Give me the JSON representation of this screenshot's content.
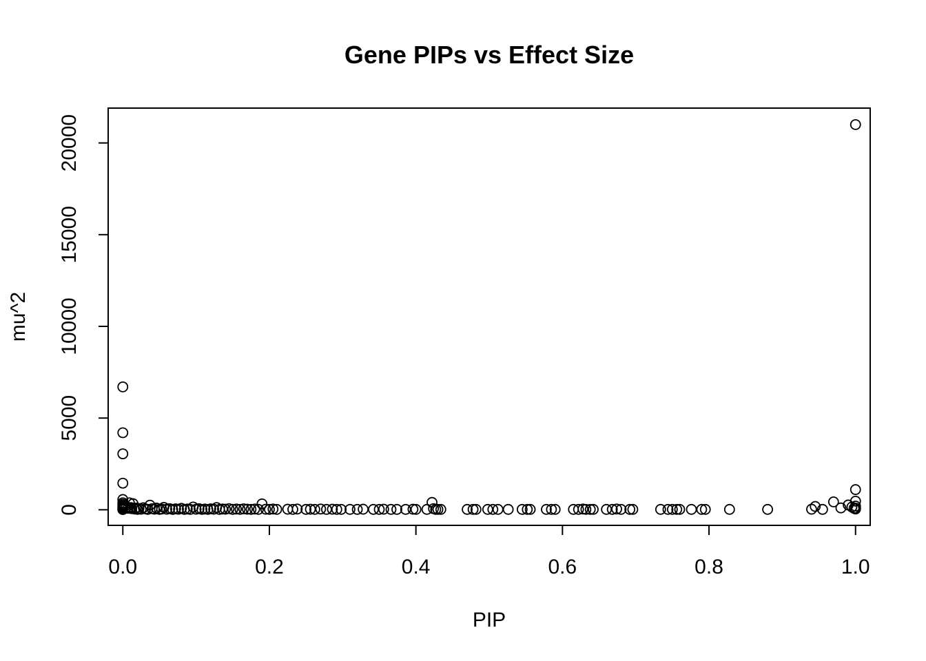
{
  "chart_data": {
    "type": "scatter",
    "title": "Gene PIPs vs Effect Size",
    "xlabel": "PIP",
    "ylabel": "mu^2",
    "xlim": [
      -0.02,
      1.02
    ],
    "ylim": [
      -850,
      21900
    ],
    "x_ticks": [
      0.0,
      0.2,
      0.4,
      0.6,
      0.8,
      1.0
    ],
    "x_tick_labels": [
      "0.0",
      "0.2",
      "0.4",
      "0.6",
      "0.8",
      "1.0"
    ],
    "y_ticks": [
      0,
      5000,
      10000,
      15000,
      20000
    ],
    "y_tick_labels": [
      "0",
      "5000",
      "10000",
      "15000",
      "20000"
    ],
    "grid": false,
    "legend": "none",
    "marker": "open-circle",
    "color": "#000000",
    "series": [
      {
        "points": [
          [
            0.0,
            6700
          ],
          [
            0.0,
            4200
          ],
          [
            0.0,
            3050
          ],
          [
            0.0,
            1450
          ],
          [
            0.0,
            560
          ],
          [
            0.0,
            380
          ],
          [
            0.0,
            300
          ],
          [
            0.0,
            240
          ],
          [
            0.0,
            180
          ],
          [
            0.0,
            130
          ],
          [
            0.0,
            90
          ],
          [
            0.0,
            60
          ],
          [
            0.0,
            30
          ],
          [
            0.0,
            10
          ],
          [
            0.003,
            200
          ],
          [
            0.005,
            150
          ],
          [
            0.007,
            80
          ],
          [
            0.009,
            380
          ],
          [
            0.011,
            120
          ],
          [
            0.012,
            60
          ],
          [
            0.014,
            330
          ],
          [
            0.016,
            40
          ],
          [
            0.018,
            90
          ],
          [
            0.02,
            20
          ],
          [
            0.022,
            70
          ],
          [
            0.025,
            30
          ],
          [
            0.028,
            110
          ],
          [
            0.031,
            50
          ],
          [
            0.034,
            20
          ],
          [
            0.037,
            250
          ],
          [
            0.04,
            60
          ],
          [
            0.043,
            30
          ],
          [
            0.046,
            90
          ],
          [
            0.05,
            20
          ],
          [
            0.053,
            40
          ],
          [
            0.056,
            130
          ],
          [
            0.06,
            30
          ],
          [
            0.064,
            60
          ],
          [
            0.068,
            20
          ],
          [
            0.072,
            50
          ],
          [
            0.076,
            30
          ],
          [
            0.08,
            80
          ],
          [
            0.084,
            20
          ],
          [
            0.088,
            40
          ],
          [
            0.092,
            20
          ],
          [
            0.096,
            150
          ],
          [
            0.1,
            30
          ],
          [
            0.104,
            60
          ],
          [
            0.108,
            20
          ],
          [
            0.112,
            40
          ],
          [
            0.116,
            20
          ],
          [
            0.12,
            50
          ],
          [
            0.124,
            30
          ],
          [
            0.128,
            120
          ],
          [
            0.132,
            20
          ],
          [
            0.136,
            40
          ],
          [
            0.14,
            30
          ],
          [
            0.145,
            60
          ],
          [
            0.15,
            20
          ],
          [
            0.155,
            40
          ],
          [
            0.16,
            20
          ],
          [
            0.165,
            50
          ],
          [
            0.17,
            30
          ],
          [
            0.175,
            20
          ],
          [
            0.18,
            40
          ],
          [
            0.185,
            20
          ],
          [
            0.19,
            320
          ],
          [
            0.195,
            30
          ],
          [
            0.2,
            20
          ],
          [
            0.205,
            40
          ],
          [
            0.21,
            20
          ],
          [
            0.225,
            30
          ],
          [
            0.232,
            20
          ],
          [
            0.238,
            40
          ],
          [
            0.25,
            20
          ],
          [
            0.256,
            30
          ],
          [
            0.262,
            20
          ],
          [
            0.27,
            40
          ],
          [
            0.278,
            20
          ],
          [
            0.286,
            30
          ],
          [
            0.292,
            20
          ],
          [
            0.298,
            20
          ],
          [
            0.31,
            20
          ],
          [
            0.32,
            20
          ],
          [
            0.328,
            30
          ],
          [
            0.342,
            20
          ],
          [
            0.35,
            20
          ],
          [
            0.356,
            30
          ],
          [
            0.366,
            20
          ],
          [
            0.374,
            20
          ],
          [
            0.386,
            20
          ],
          [
            0.396,
            30
          ],
          [
            0.4,
            20
          ],
          [
            0.415,
            20
          ],
          [
            0.422,
            400
          ],
          [
            0.424,
            60
          ],
          [
            0.427,
            20
          ],
          [
            0.43,
            20
          ],
          [
            0.434,
            20
          ],
          [
            0.47,
            20
          ],
          [
            0.478,
            20
          ],
          [
            0.482,
            20
          ],
          [
            0.498,
            20
          ],
          [
            0.505,
            20
          ],
          [
            0.512,
            20
          ],
          [
            0.526,
            20
          ],
          [
            0.545,
            20
          ],
          [
            0.552,
            20
          ],
          [
            0.556,
            20
          ],
          [
            0.578,
            20
          ],
          [
            0.585,
            20
          ],
          [
            0.59,
            20
          ],
          [
            0.615,
            20
          ],
          [
            0.622,
            20
          ],
          [
            0.628,
            40
          ],
          [
            0.632,
            20
          ],
          [
            0.638,
            20
          ],
          [
            0.642,
            20
          ],
          [
            0.66,
            20
          ],
          [
            0.668,
            20
          ],
          [
            0.674,
            40
          ],
          [
            0.68,
            20
          ],
          [
            0.692,
            20
          ],
          [
            0.696,
            20
          ],
          [
            0.734,
            20
          ],
          [
            0.744,
            20
          ],
          [
            0.75,
            20
          ],
          [
            0.756,
            20
          ],
          [
            0.76,
            20
          ],
          [
            0.776,
            20
          ],
          [
            0.79,
            20
          ],
          [
            0.795,
            20
          ],
          [
            0.828,
            20
          ],
          [
            0.88,
            20
          ],
          [
            0.94,
            30
          ],
          [
            0.945,
            180
          ],
          [
            0.955,
            20
          ],
          [
            0.97,
            430
          ],
          [
            0.98,
            100
          ],
          [
            0.99,
            260
          ],
          [
            0.995,
            150
          ],
          [
            0.998,
            80
          ],
          [
            1.0,
            21000
          ],
          [
            1.0,
            1100
          ],
          [
            1.0,
            470
          ],
          [
            1.0,
            200
          ],
          [
            1.0,
            90
          ],
          [
            1.0,
            40
          ]
        ]
      }
    ]
  }
}
